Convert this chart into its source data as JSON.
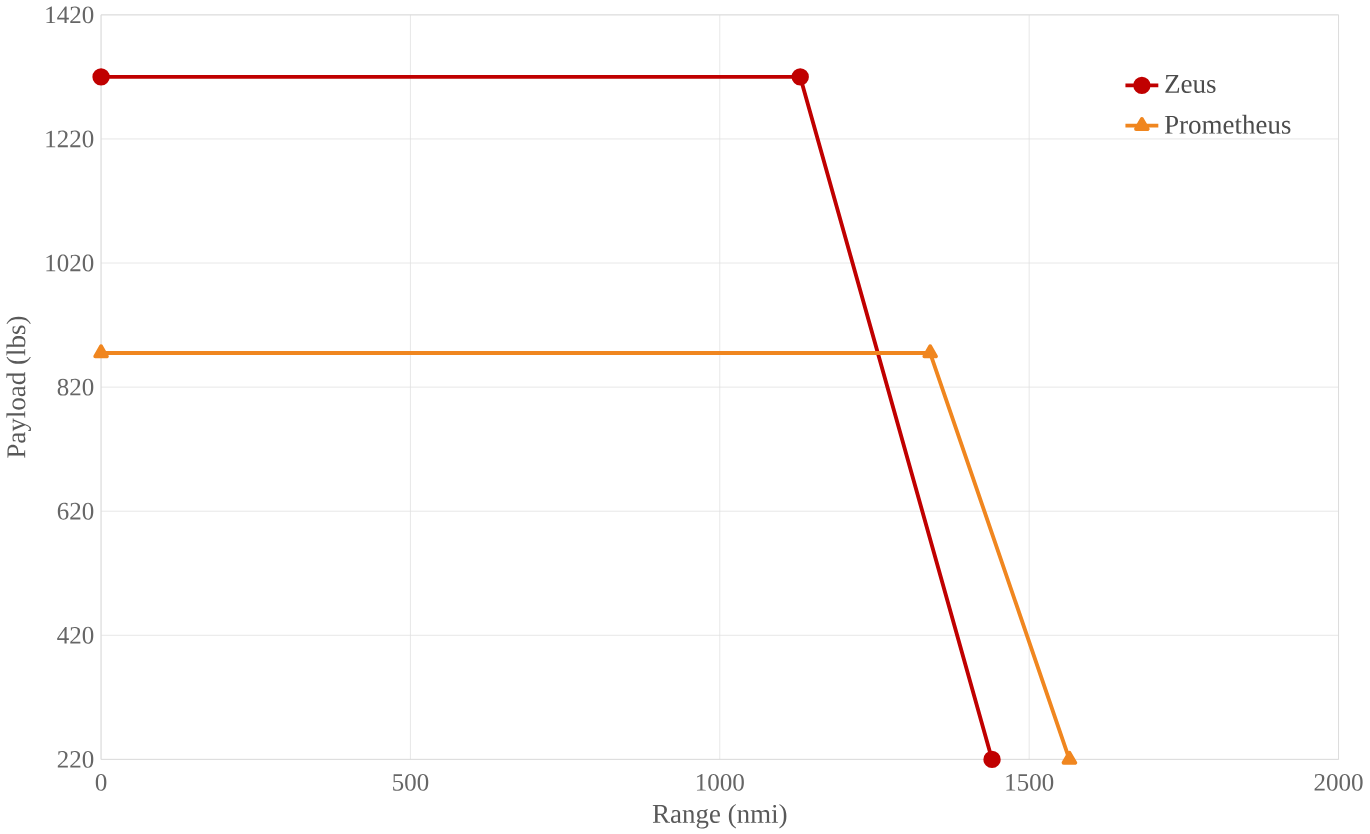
{
  "chart_data": {
    "type": "line",
    "xlabel": "Range (nmi)",
    "ylabel": "Payload (lbs)",
    "xlim": [
      0,
      2000
    ],
    "xticks": [
      0,
      500,
      1000,
      1500,
      2000
    ],
    "ylim": [
      220,
      1420
    ],
    "yticks": [
      220,
      420,
      620,
      820,
      1020,
      1220,
      1420
    ],
    "grid": true,
    "legend": "top right",
    "series": [
      {
        "name": "Zeus",
        "color": "#c00000",
        "marker": "circle",
        "x": [
          0,
          1130,
          1440
        ],
        "values": [
          1320,
          1320,
          220
        ]
      },
      {
        "name": "Prometheus",
        "color": "#f0861f",
        "marker": "triangle",
        "x": [
          0,
          1340,
          1565
        ],
        "values": [
          875,
          875,
          220
        ]
      }
    ]
  }
}
